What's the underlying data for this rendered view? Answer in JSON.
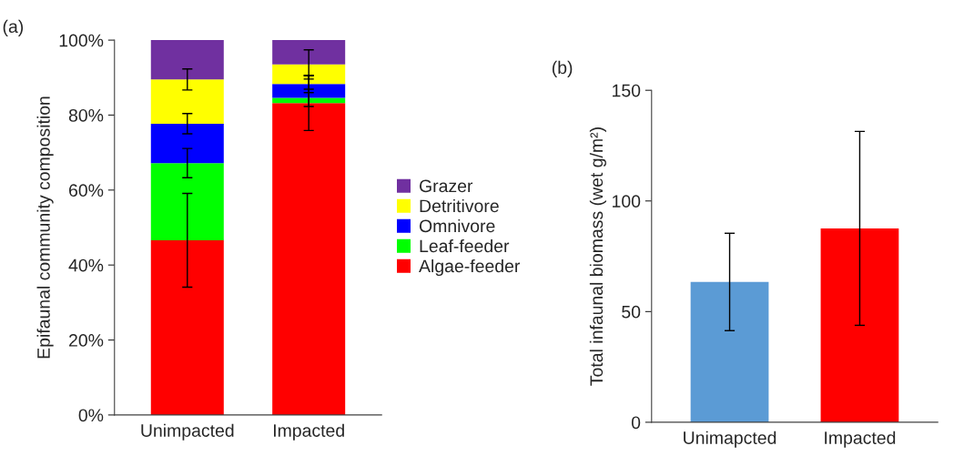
{
  "chart_data": [
    {
      "type": "bar",
      "stacked": true,
      "ylabel": "Epifaunal community composition",
      "annotations": [
        "(a)"
      ],
      "categories": [
        "Unimpacted",
        "Impacted"
      ],
      "series": [
        {
          "name": "Algae-feeder",
          "color": "#ff0000",
          "values": [
            46.6,
            83.2
          ],
          "errors": [
            12.5,
            7.3
          ]
        },
        {
          "name": "Leaf-feeder",
          "color": "#00ff00",
          "values": [
            20.6,
            1.4
          ],
          "errors": [
            3.9,
            2.3
          ]
        },
        {
          "name": "Omnivore",
          "color": "#0000ff",
          "values": [
            10.5,
            3.7
          ],
          "errors": [
            2.7,
            2.3
          ]
        },
        {
          "name": "Detritivore",
          "color": "#ffff00",
          "values": [
            11.8,
            5.2
          ],
          "errors": [
            2.8,
            3.9
          ]
        },
        {
          "name": "Grazer",
          "color": "#7030a0",
          "values": [
            10.5,
            6.5
          ]
        }
      ],
      "ylim": [
        0,
        100
      ],
      "yticks": [
        {
          "value": 0,
          "label": "0%"
        },
        {
          "value": 20,
          "label": "20%"
        },
        {
          "value": 40,
          "label": "40%"
        },
        {
          "value": 60,
          "label": "60%"
        },
        {
          "value": 80,
          "label": "80%"
        },
        {
          "value": 100,
          "label": "100%"
        }
      ],
      "legend": "right"
    },
    {
      "type": "bar",
      "ylabel": "Total infaunal biomass (wet g/m²)",
      "annotations": [
        "(b)"
      ],
      "categories": [
        "Unimapcted",
        "Impacted"
      ],
      "values": [
        63.4,
        87.6
      ],
      "colors": [
        "#5b9bd5",
        "#ff0000"
      ],
      "errors": [
        22,
        43.8
      ],
      "ylim": [
        0,
        150
      ],
      "yticks": [
        0,
        50,
        100,
        150
      ]
    }
  ]
}
